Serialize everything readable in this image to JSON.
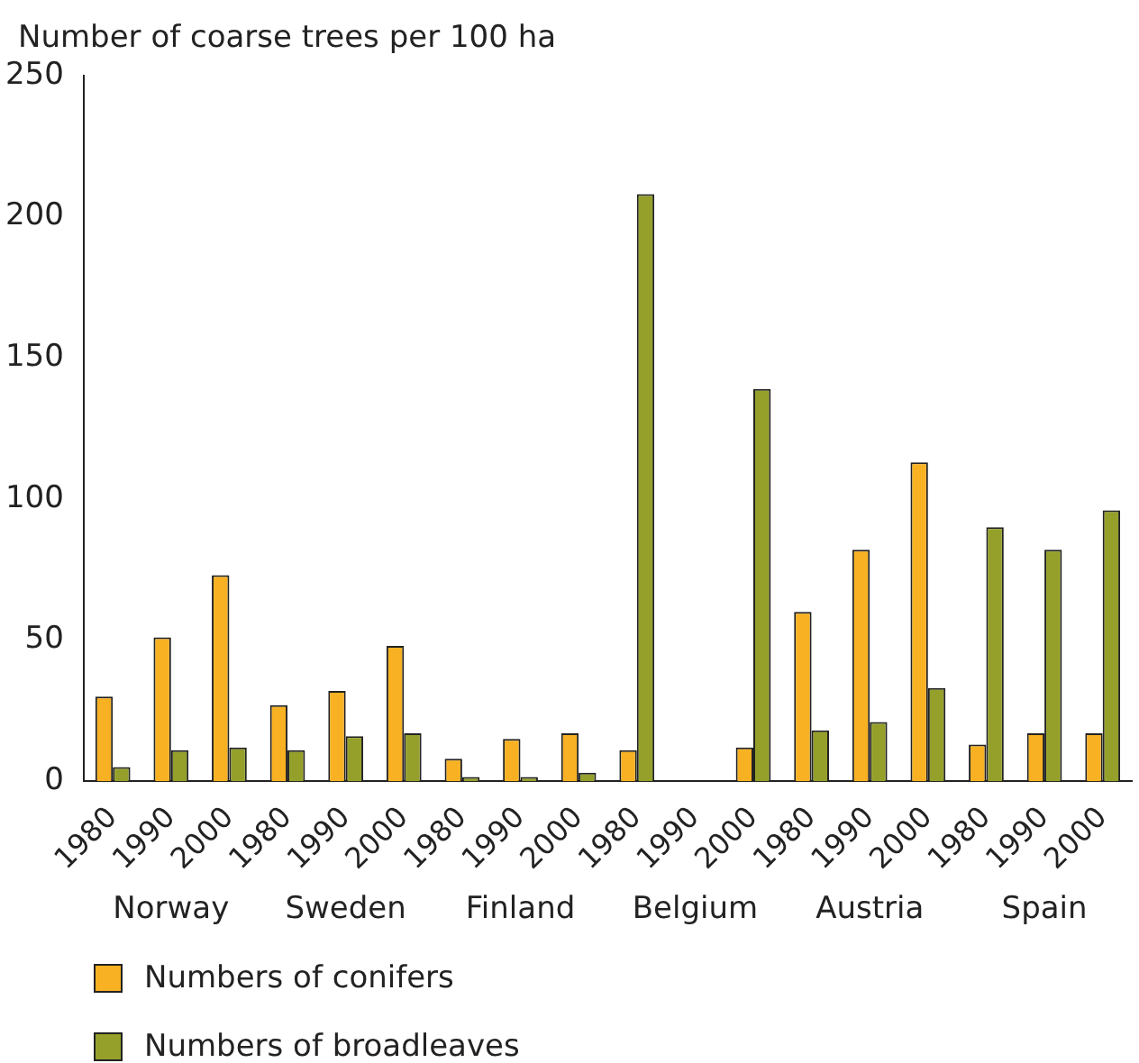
{
  "chart_data": {
    "type": "bar",
    "ylabel": "Number of coarse trees per 100 ha",
    "categories": [
      "1980",
      "1990",
      "2000",
      "1980",
      "1990",
      "2000",
      "1980",
      "1990",
      "2000",
      "1980",
      "1990",
      "2000",
      "1980",
      "1990",
      "2000",
      "1980",
      "1990",
      "2000"
    ],
    "annotations": [
      "Norway",
      "Sweden",
      "Finland",
      "Belgium",
      "Austria",
      "Spain"
    ],
    "series": [
      {
        "name": "Numbers of conifers",
        "color": "#f7b122",
        "values": [
          30,
          51,
          73,
          27,
          32,
          48,
          8,
          15,
          17,
          11,
          null,
          12,
          60,
          82,
          113,
          13,
          17,
          17
        ]
      },
      {
        "name": "Numbers of broadleaves",
        "color": "#95a02b",
        "values": [
          5,
          11,
          12,
          11,
          16,
          17,
          1.5,
          1.5,
          3,
          208,
          null,
          139,
          18,
          21,
          33,
          90,
          82,
          96
        ]
      }
    ],
    "ylim": [
      0,
      250
    ],
    "yticks": [
      0,
      50,
      100,
      150,
      200,
      250
    ],
    "grid": false,
    "legend": "bottom"
  }
}
